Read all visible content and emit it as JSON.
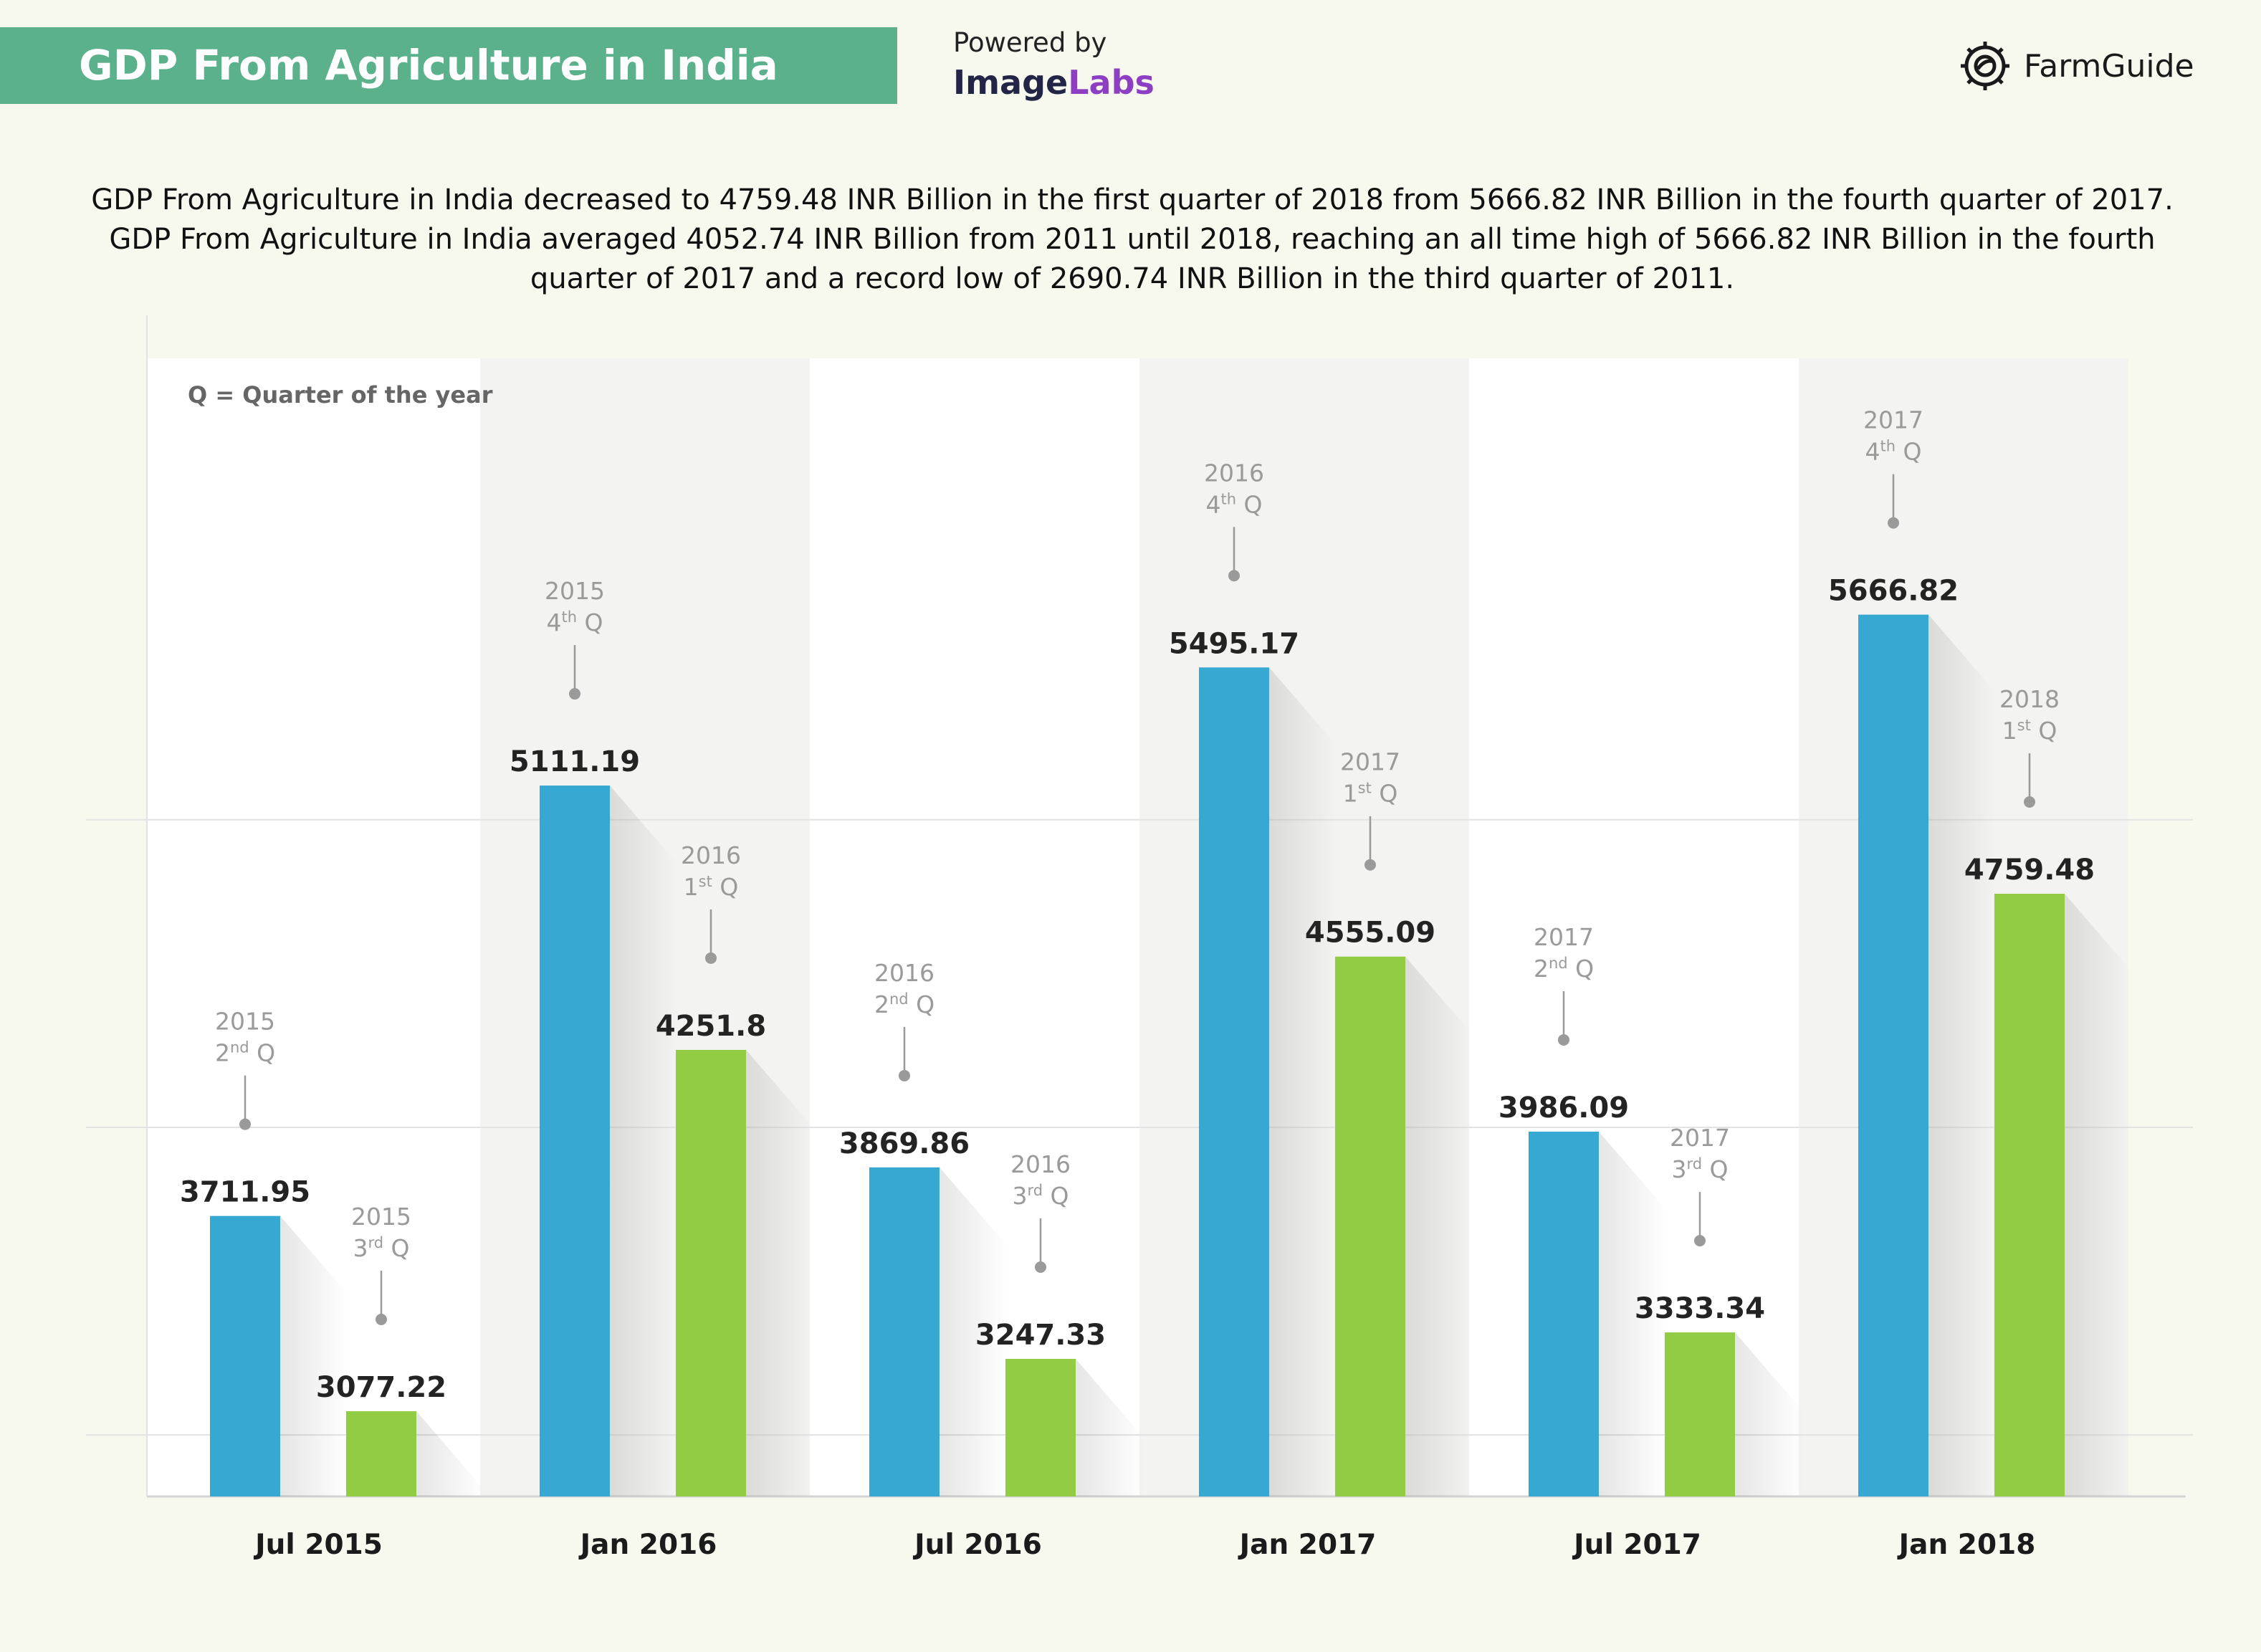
{
  "header": {
    "title": "GDP From Agriculture in India",
    "powered_by": "Powered by",
    "brand_part1": "Image",
    "brand_part2": "Labs",
    "logo_text": "FarmGuide"
  },
  "description": "GDP From Agriculture in India decreased to 4759.48 INR Billion in the first quarter of 2018 from 5666.82 INR Billion in the fourth quarter of 2017. GDP From Agriculture in India averaged 4052.74 INR Billion from 2011 until 2018, reaching an all time high of 5666.82 INR Billion in the fourth quarter of 2017 and a record low of 2690.74 INR Billion in the third quarter of 2011.",
  "colors": {
    "banner": "#5ab18b",
    "blue": "#37a8d1",
    "green": "#92cb44",
    "band": "#f3f3f1",
    "plot_bg": "#ffffff"
  },
  "chart_data": {
    "type": "bar",
    "legend_note": "Q = Quarter of the year",
    "categories": [
      "Jul 2015",
      "Jan 2016",
      "Jul 2016",
      "Jan 2017",
      "Jul 2017",
      "Jan 2018"
    ],
    "bars": [
      {
        "category": 0,
        "value": 3711.95,
        "label": "3711.95",
        "year": "2015",
        "q_num": "2",
        "q_sup": "nd",
        "series": "blue"
      },
      {
        "category": 0,
        "value": 3077.22,
        "label": "3077.22",
        "year": "2015",
        "q_num": "3",
        "q_sup": "rd",
        "series": "green"
      },
      {
        "category": 1,
        "value": 5111.19,
        "label": "5111.19",
        "year": "2015",
        "q_num": "4",
        "q_sup": "th",
        "series": "blue"
      },
      {
        "category": 1,
        "value": 4251.8,
        "label": "4251.8",
        "year": "2016",
        "q_num": "1",
        "q_sup": "st",
        "series": "green"
      },
      {
        "category": 2,
        "value": 3869.86,
        "label": "3869.86",
        "year": "2016",
        "q_num": "2",
        "q_sup": "nd",
        "series": "blue"
      },
      {
        "category": 2,
        "value": 3247.33,
        "label": "3247.33",
        "year": "2016",
        "q_num": "3",
        "q_sup": "rd",
        "series": "green"
      },
      {
        "category": 3,
        "value": 5495.17,
        "label": "5495.17",
        "year": "2016",
        "q_num": "4",
        "q_sup": "th",
        "series": "blue"
      },
      {
        "category": 3,
        "value": 4555.09,
        "label": "4555.09",
        "year": "2017",
        "q_num": "1",
        "q_sup": "st",
        "series": "green"
      },
      {
        "category": 4,
        "value": 3986.09,
        "label": "3986.09",
        "year": "2017",
        "q_num": "2",
        "q_sup": "nd",
        "series": "blue"
      },
      {
        "category": 4,
        "value": 3333.34,
        "label": "3333.34",
        "year": "2017",
        "q_num": "3",
        "q_sup": "rd",
        "series": "green"
      },
      {
        "category": 5,
        "value": 5666.82,
        "label": "5666.82",
        "year": "2017",
        "q_num": "4",
        "q_sup": "th",
        "series": "blue"
      },
      {
        "category": 5,
        "value": 4759.48,
        "label": "4759.48",
        "year": "2018",
        "q_num": "1",
        "q_sup": "st",
        "series": "green"
      }
    ],
    "gridlines": [
      3000,
      4000,
      5000
    ],
    "ylim": [
      2800,
      6500
    ],
    "xlabel": "",
    "ylabel": "",
    "title": ""
  }
}
